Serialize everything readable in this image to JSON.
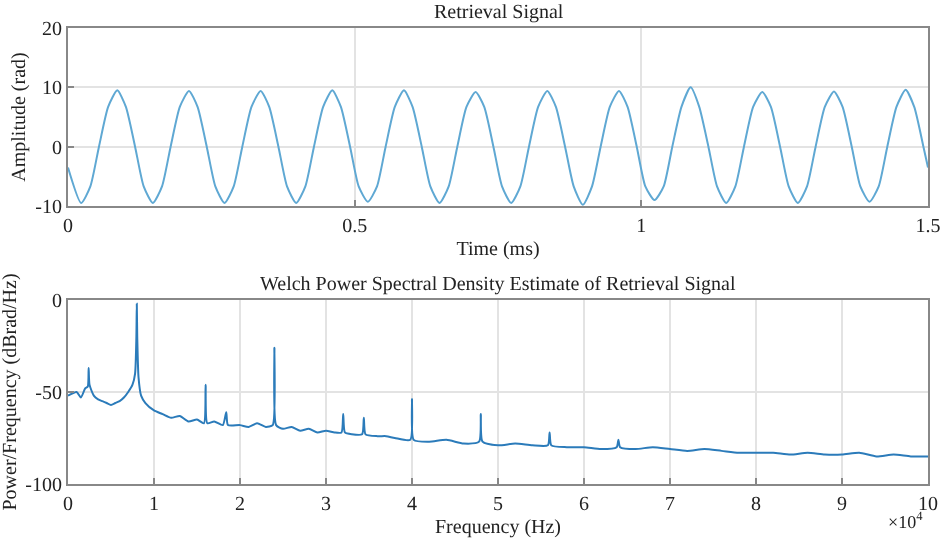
{
  "chart_data": [
    {
      "type": "line",
      "title": "Retrieval Signal",
      "xlabel": "Time (ms)",
      "ylabel": "Amplitude (rad)",
      "grid": true,
      "xlim": [
        0,
        1.5
      ],
      "ylim": [
        -10,
        20
      ],
      "xticks": [
        0,
        0.5,
        1,
        1.5
      ],
      "yticks": [
        -10,
        0,
        10,
        20
      ],
      "x": [
        0,
        0.023,
        0.039,
        0.054,
        0.07,
        0.086,
        0.101,
        0.117,
        0.132,
        0.148,
        0.164,
        0.179,
        0.195,
        0.211,
        0.226,
        0.242,
        0.257,
        0.273,
        0.289,
        0.304,
        0.32,
        0.336,
        0.351,
        0.367,
        0.382,
        0.398,
        0.414,
        0.429,
        0.445,
        0.461,
        0.476,
        0.492,
        0.507,
        0.523,
        0.539,
        0.554,
        0.57,
        0.586,
        0.601,
        0.617,
        0.632,
        0.648,
        0.664,
        0.679,
        0.695,
        0.711,
        0.726,
        0.742,
        0.757,
        0.773,
        0.789,
        0.804,
        0.82,
        0.836,
        0.851,
        0.867,
        0.882,
        0.898,
        0.914,
        0.929,
        0.945,
        0.961,
        0.976,
        0.992,
        1.007,
        1.023,
        1.039,
        1.054,
        1.07,
        1.086,
        1.101,
        1.117,
        1.132,
        1.148,
        1.164,
        1.179,
        1.195,
        1.211,
        1.226,
        1.242,
        1.257,
        1.273,
        1.289,
        1.304,
        1.32,
        1.336,
        1.351,
        1.367,
        1.382,
        1.398,
        1.414,
        1.429,
        1.445,
        1.461,
        1.476,
        1.492,
        1.5
      ],
      "series": [
        {
          "color": "#5fa8d3",
          "values": [
            -3.5,
            -9.5,
            -6.7,
            0,
            6.7,
            9.5,
            6.7,
            0,
            -6.7,
            -9.5,
            -6.7,
            0,
            6.7,
            9.4,
            6.7,
            0,
            -6.7,
            -9.5,
            -6.7,
            0,
            6.7,
            9.4,
            6.7,
            0,
            -6.7,
            -9.5,
            -6.7,
            0,
            6.7,
            9.5,
            6.7,
            0,
            -6.7,
            -9.3,
            -6.7,
            0,
            6.7,
            9.5,
            6.7,
            0,
            -6.7,
            -9.5,
            -6.7,
            0,
            6.7,
            9.2,
            6.7,
            0,
            -6.7,
            -9.5,
            -6.7,
            0,
            6.7,
            9.4,
            6.7,
            0,
            -6.7,
            -9.8,
            -6.7,
            0,
            6.7,
            9.4,
            6.7,
            0,
            -6.7,
            -9.0,
            -6.7,
            0,
            6.7,
            10,
            6.7,
            0,
            -6.7,
            -9.5,
            -6.7,
            0,
            6.7,
            9.2,
            6.7,
            0,
            -6.7,
            -9.5,
            -6.7,
            0,
            6.7,
            9.3,
            6.7,
            0,
            -6.7,
            -9.3,
            -6.7,
            0,
            6.7,
            9.6,
            6.7,
            0,
            -3.5
          ]
        }
      ]
    },
    {
      "type": "line",
      "title": "Welch Power Spectral Density Estimate of Retrieval Signal",
      "xlabel": "Frequency (Hz)",
      "ylabel": "Power/Frequency (dBrad/Hz)",
      "grid": true,
      "xlim": [
        0,
        10
      ],
      "ylim": [
        -100,
        0
      ],
      "xticks": [
        0,
        1,
        2,
        3,
        4,
        5,
        6,
        7,
        8,
        9,
        10
      ],
      "yticks": [
        -100,
        -50,
        0
      ],
      "annotations": [
        "×10$^{4}$"
      ],
      "x": [
        0,
        0.1,
        0.15,
        0.2,
        0.23,
        0.24,
        0.25,
        0.3,
        0.35,
        0.4,
        0.45,
        0.5,
        0.55,
        0.6,
        0.65,
        0.7,
        0.75,
        0.78,
        0.795,
        0.8,
        0.805,
        0.82,
        0.85,
        0.9,
        1.0,
        1.1,
        1.2,
        1.3,
        1.4,
        1.5,
        1.58,
        1.6,
        1.62,
        1.7,
        1.8,
        1.84,
        1.86,
        2.0,
        2.1,
        2.2,
        2.3,
        2.38,
        2.4,
        2.42,
        2.5,
        2.6,
        2.7,
        2.8,
        2.9,
        3.0,
        3.1,
        3.18,
        3.2,
        3.22,
        3.3,
        3.42,
        3.44,
        3.46,
        3.6,
        3.7,
        3.8,
        3.98,
        4.0,
        4.02,
        4.2,
        4.4,
        4.6,
        4.78,
        4.8,
        4.82,
        5.0,
        5.2,
        5.4,
        5.58,
        5.6,
        5.62,
        5.8,
        6.0,
        6.2,
        6.38,
        6.4,
        6.42,
        6.6,
        6.8,
        7.0,
        7.2,
        7.4,
        7.6,
        7.8,
        8.0,
        8.2,
        8.4,
        8.6,
        8.8,
        9.0,
        9.2,
        9.4,
        9.6,
        9.8,
        10
      ],
      "series": [
        {
          "color": "#2b7bba",
          "values": [
            -52,
            -50,
            -53,
            -48,
            -47,
            -37,
            -46,
            -52,
            -54,
            -55,
            -56,
            -57,
            -56,
            -55,
            -53,
            -50,
            -46,
            -40,
            -20,
            -2,
            -20,
            -42,
            -52,
            -56,
            -60,
            -62,
            -64,
            -63,
            -66,
            -65,
            -67,
            -46,
            -67,
            -66,
            -68,
            -61,
            -68,
            -68,
            -69,
            -67,
            -69,
            -68,
            -26,
            -68,
            -70,
            -69,
            -71,
            -70,
            -72,
            -71,
            -72,
            -72,
            -62,
            -72,
            -73,
            -73,
            -64,
            -73,
            -74,
            -74,
            -75,
            -76,
            -54,
            -76,
            -77,
            -76,
            -78,
            -77,
            -62,
            -77,
            -79,
            -78,
            -79,
            -79,
            -72,
            -79,
            -80,
            -80,
            -81,
            -80,
            -76,
            -80,
            -81,
            -80,
            -81,
            -82,
            -81,
            -82,
            -83,
            -83,
            -83,
            -84,
            -83,
            -84,
            -84,
            -83,
            -85,
            -84,
            -85,
            -85
          ]
        }
      ]
    }
  ]
}
